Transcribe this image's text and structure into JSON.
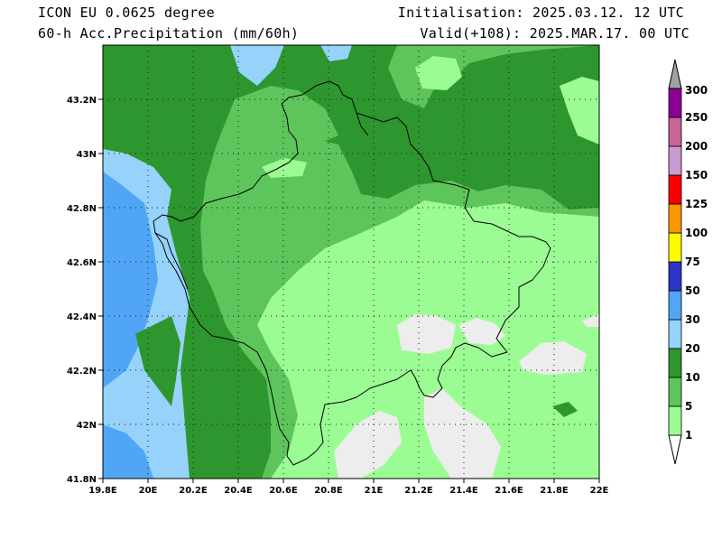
{
  "header": {
    "model": "ICON EU 0.0625 degree",
    "field": "60-h Acc.Precipitation (mm/60h)",
    "init": "Initialisation: 2025.03.12. 12 UTC",
    "valid": "Valid(+108): 2025.MAR.17. 00 UTC"
  },
  "map": {
    "lon_ticks": [
      "19.8E",
      "20E",
      "20.2E",
      "20.4E",
      "20.6E",
      "20.8E",
      "21E",
      "21.2E",
      "21.4E",
      "21.6E",
      "21.8E",
      "22E"
    ],
    "lat_ticks": [
      "41.8N",
      "42N",
      "42.2N",
      "42.4N",
      "42.6N",
      "42.8N",
      "43N",
      "43.2N"
    ],
    "lon_range": [
      19.8,
      22.0
    ],
    "lat_range": [
      41.8,
      43.4
    ],
    "gridlines": true
  },
  "colorbar": {
    "levels": [
      "1",
      "5",
      "10",
      "20",
      "30",
      "50",
      "75",
      "100",
      "125",
      "150",
      "200",
      "250",
      "300"
    ],
    "colors": [
      "#9cfc94",
      "#5ec45c",
      "#2e962e",
      "#96d2fa",
      "#50a5f5",
      "#2d35c8",
      "#fcfc00",
      "#fc9600",
      "#fc0000",
      "#c89ad2",
      "#c86496",
      "#8c0096"
    ],
    "under_color": "#ffffff",
    "over_color": "#a0a0a0"
  },
  "legend_colors": {
    "none": "#ededed",
    "light_green": "#9cfc94",
    "mid_green": "#5ec45c",
    "dark_green": "#2e962e",
    "light_blue": "#96d2fa",
    "blue": "#50a5f5"
  }
}
